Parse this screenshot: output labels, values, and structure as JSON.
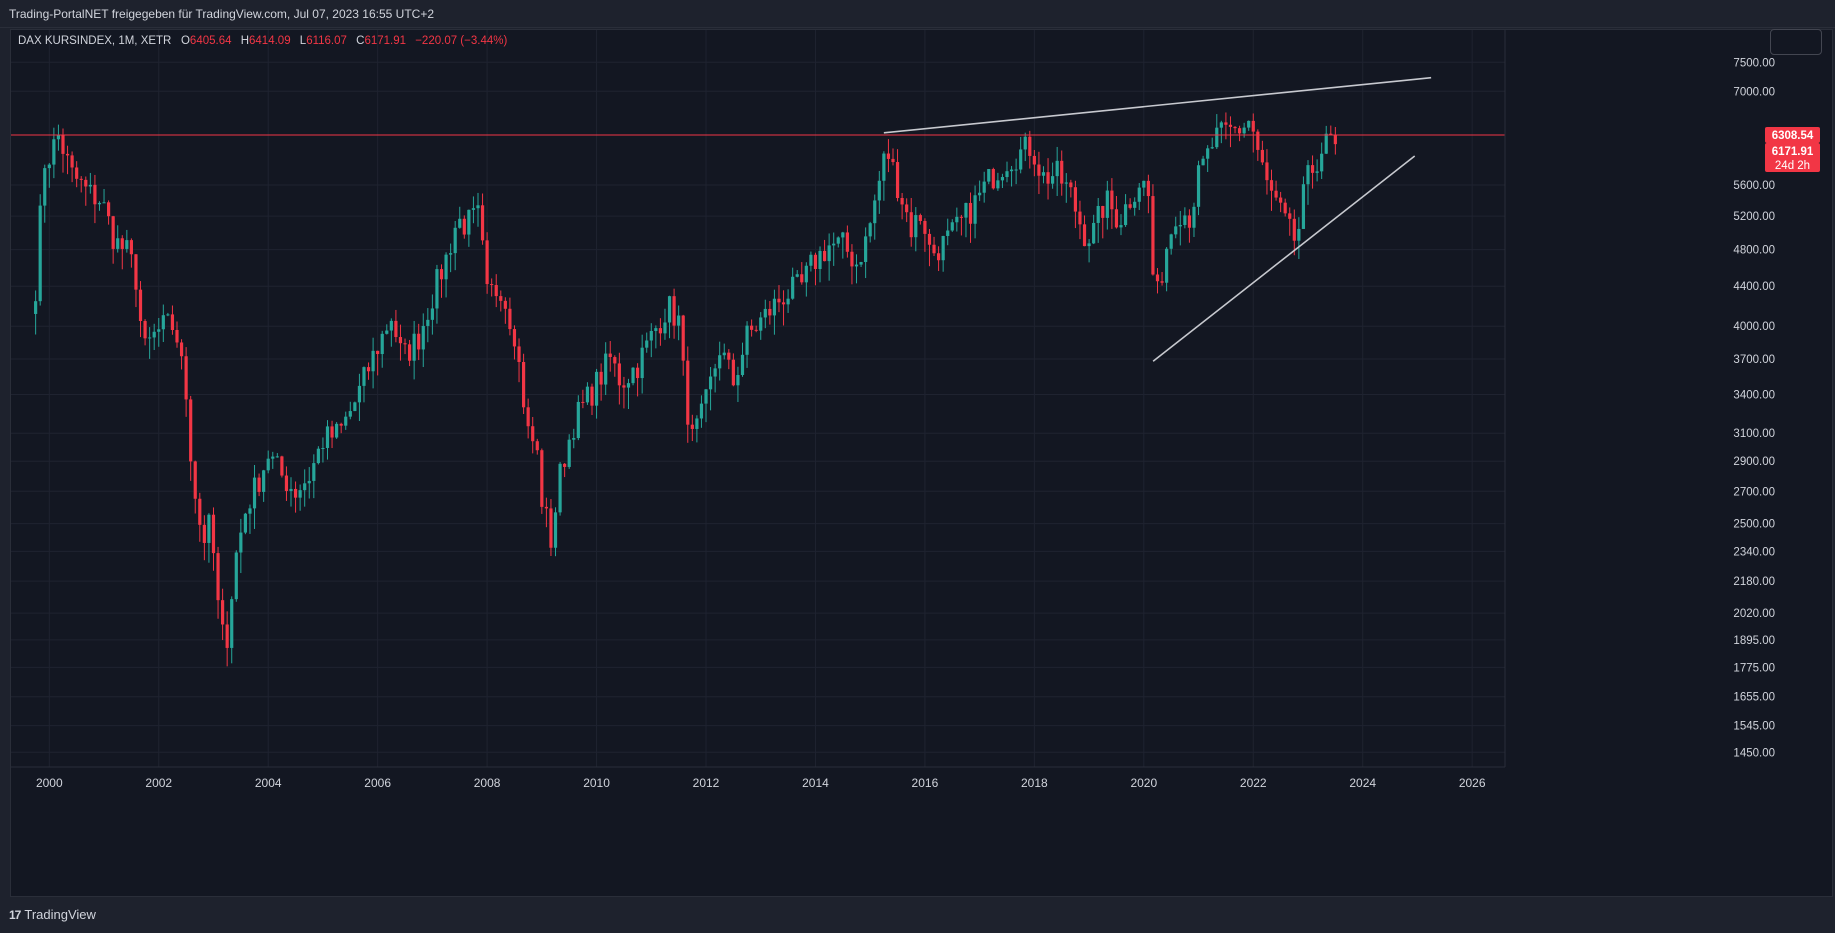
{
  "header": {
    "caption": "Trading-PortalNET freigegeben für TradingView.com, Jul 07, 2023 16:55 UTC+2"
  },
  "legend": {
    "symbol": "DAX KURSINDEX, 1M, XETR",
    "open_label": "O",
    "open": "6405.64",
    "high_label": "H",
    "high": "6414.09",
    "low_label": "L",
    "low": "6116.07",
    "close_label": "C",
    "close": "6171.91",
    "change": "−220.07 (−3.44%)"
  },
  "footer": {
    "logo_icon": "17",
    "logo_text": "TradingView"
  },
  "colors": {
    "background": "#131722",
    "frame": "#1e222d",
    "grid": "#1f2330",
    "up": "#26a69a",
    "down": "#f23645",
    "hline": "#f23645",
    "trendline": "#c7c9cf",
    "text": "#d1d4dc"
  },
  "chart_data": {
    "type": "candlestick",
    "title": "DAX KURSINDEX, 1M, XETR",
    "scale": "log",
    "ylim": [
      1400,
      8100
    ],
    "xlim": [
      1999.3,
      2026.6
    ],
    "y_ticks": [
      7500,
      7000,
      6308.54,
      5600,
      5200,
      4800,
      4400,
      4000,
      3700,
      3400,
      3100,
      2900,
      2700,
      2500,
      2340,
      2180,
      2020,
      1895,
      1775,
      1655,
      1545,
      1450
    ],
    "y_tick_labels": [
      "7500.00",
      "7000.00",
      "6308.54",
      "5600.00",
      "5200.00",
      "4800.00",
      "4400.00",
      "4000.00",
      "3700.00",
      "3400.00",
      "3100.00",
      "2900.00",
      "2700.00",
      "2500.00",
      "2340.00",
      "2180.00",
      "2020.00",
      "1895.00",
      "1775.00",
      "1655.00",
      "1545.00",
      "1450.00"
    ],
    "x_ticks": [
      2000,
      2002,
      2004,
      2006,
      2008,
      2010,
      2012,
      2014,
      2016,
      2018,
      2020,
      2022,
      2024,
      2026
    ],
    "x_tick_labels": [
      "2000",
      "2002",
      "2004",
      "2006",
      "2008",
      "2010",
      "2012",
      "2014",
      "2016",
      "2018",
      "2020",
      "2022",
      "2024",
      "2026"
    ],
    "price_labels": [
      {
        "value": 6308.54,
        "text": "6308.54"
      },
      {
        "value": 6171.91,
        "text": "6171.91"
      },
      {
        "text": "24d 2h"
      }
    ],
    "horizontal_line": 6308.54,
    "trendlines": [
      {
        "x1": 2015.25,
        "y1": 6340,
        "x2": 2025.25,
        "y2": 7230
      },
      {
        "x1": 2020.17,
        "y1": 3680,
        "x2": 2024.95,
        "y2": 6000
      }
    ],
    "anchors": [
      [
        1999.75,
        4400
      ],
      [
        1999.9,
        5900
      ],
      [
        2000.0,
        6000
      ],
      [
        2000.17,
        6300
      ],
      [
        2000.4,
        5750
      ],
      [
        2000.7,
        5500
      ],
      [
        2000.95,
        5400
      ],
      [
        2001.2,
        4900
      ],
      [
        2001.45,
        4750
      ],
      [
        2001.6,
        4450
      ],
      [
        2001.72,
        3750
      ],
      [
        2001.9,
        3900
      ],
      [
        2002.1,
        4000
      ],
      [
        2002.3,
        4000
      ],
      [
        2002.5,
        3400
      ],
      [
        2002.62,
        2800
      ],
      [
        2002.8,
        2400
      ],
      [
        2002.95,
        2500
      ],
      [
        2003.1,
        2000
      ],
      [
        2003.22,
        1850
      ],
      [
        2003.4,
        2300
      ],
      [
        2003.6,
        2600
      ],
      [
        2003.8,
        2750
      ],
      [
        2004.0,
        2950
      ],
      [
        2004.25,
        2800
      ],
      [
        2004.5,
        2700
      ],
      [
        2004.75,
        2800
      ],
      [
        2005.0,
        3050
      ],
      [
        2005.3,
        3100
      ],
      [
        2005.6,
        3350
      ],
      [
        2005.9,
        3700
      ],
      [
        2006.25,
        4100
      ],
      [
        2006.45,
        3700
      ],
      [
        2006.75,
        3900
      ],
      [
        2007.0,
        4300
      ],
      [
        2007.25,
        4700
      ],
      [
        2007.45,
        5150
      ],
      [
        2007.6,
        5100
      ],
      [
        2007.85,
        5200
      ],
      [
        2008.0,
        4300
      ],
      [
        2008.25,
        4400
      ],
      [
        2008.5,
        3950
      ],
      [
        2008.75,
        3100
      ],
      [
        2008.9,
        3000
      ],
      [
        2009.0,
        2650
      ],
      [
        2009.17,
        2400
      ],
      [
        2009.35,
        2850
      ],
      [
        2009.6,
        3200
      ],
      [
        2009.95,
        3450
      ],
      [
        2010.25,
        3700
      ],
      [
        2010.45,
        3500
      ],
      [
        2010.75,
        3650
      ],
      [
        2011.1,
        4000
      ],
      [
        2011.3,
        4200
      ],
      [
        2011.5,
        4050
      ],
      [
        2011.62,
        3400
      ],
      [
        2011.75,
        3050
      ],
      [
        2011.95,
        3250
      ],
      [
        2012.25,
        3800
      ],
      [
        2012.5,
        3500
      ],
      [
        2012.75,
        3900
      ],
      [
        2013.0,
        4050
      ],
      [
        2013.4,
        4300
      ],
      [
        2013.75,
        4400
      ],
      [
        2013.95,
        4650
      ],
      [
        2014.25,
        4850
      ],
      [
        2014.5,
        4850
      ],
      [
        2014.75,
        4650
      ],
      [
        2014.95,
        4950
      ],
      [
        2015.15,
        5600
      ],
      [
        2015.3,
        6100
      ],
      [
        2015.55,
        5500
      ],
      [
        2015.75,
        5050
      ],
      [
        2015.95,
        5250
      ],
      [
        2016.1,
        4750
      ],
      [
        2016.4,
        4900
      ],
      [
        2016.65,
        5100
      ],
      [
        2016.95,
        5400
      ],
      [
        2017.2,
        5700
      ],
      [
        2017.5,
        5950
      ],
      [
        2017.75,
        6050
      ],
      [
        2017.95,
        6150
      ],
      [
        2018.15,
        5700
      ],
      [
        2018.4,
        5750
      ],
      [
        2018.65,
        5500
      ],
      [
        2018.9,
        5000
      ],
      [
        2019.05,
        4950
      ],
      [
        2019.3,
        5400
      ],
      [
        2019.55,
        5150
      ],
      [
        2019.8,
        5500
      ],
      [
        2019.95,
        5700
      ],
      [
        2020.1,
        5400
      ],
      [
        2020.2,
        4150
      ],
      [
        2020.4,
        4800
      ],
      [
        2020.6,
        5300
      ],
      [
        2020.85,
        5200
      ],
      [
        2021.0,
        5700
      ],
      [
        2021.3,
        6250
      ],
      [
        2021.55,
        6350
      ],
      [
        2021.75,
        6400
      ],
      [
        2021.95,
        6550
      ],
      [
        2022.1,
        6000
      ],
      [
        2022.25,
        5600
      ],
      [
        2022.45,
        5300
      ],
      [
        2022.7,
        4950
      ],
      [
        2022.8,
        4900
      ],
      [
        2022.95,
        5600
      ],
      [
        2023.1,
        5850
      ],
      [
        2023.25,
        6100
      ],
      [
        2023.45,
        6250
      ],
      [
        2023.5,
        6171.91
      ]
    ]
  }
}
